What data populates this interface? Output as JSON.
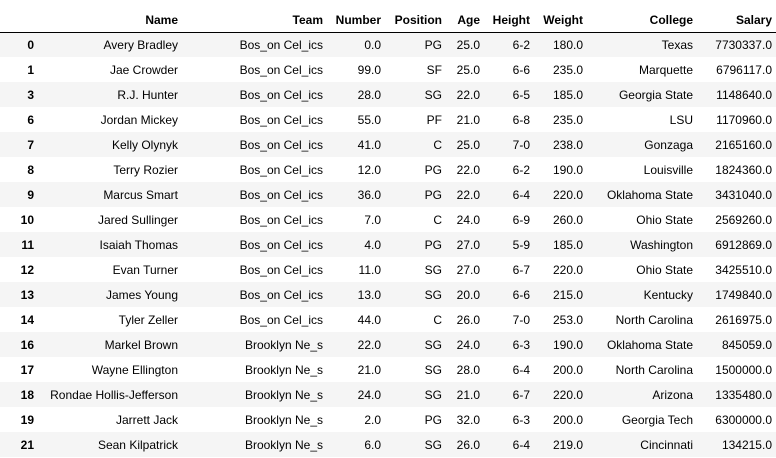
{
  "table": {
    "columns": [
      "",
      "Name",
      "Team",
      "Number",
      "Position",
      "Age",
      "Height",
      "Weight",
      "College",
      "Salary"
    ],
    "rows": [
      [
        "0",
        "Avery Bradley",
        "Bos_on Cel_ics",
        "0.0",
        "PG",
        "25.0",
        "6-2",
        "180.0",
        "Texas",
        "7730337.0"
      ],
      [
        "1",
        "Jae Crowder",
        "Bos_on Cel_ics",
        "99.0",
        "SF",
        "25.0",
        "6-6",
        "235.0",
        "Marquette",
        "6796117.0"
      ],
      [
        "3",
        "R.J. Hunter",
        "Bos_on Cel_ics",
        "28.0",
        "SG",
        "22.0",
        "6-5",
        "185.0",
        "Georgia State",
        "1148640.0"
      ],
      [
        "6",
        "Jordan Mickey",
        "Bos_on Cel_ics",
        "55.0",
        "PF",
        "21.0",
        "6-8",
        "235.0",
        "LSU",
        "1170960.0"
      ],
      [
        "7",
        "Kelly Olynyk",
        "Bos_on Cel_ics",
        "41.0",
        "C",
        "25.0",
        "7-0",
        "238.0",
        "Gonzaga",
        "2165160.0"
      ],
      [
        "8",
        "Terry Rozier",
        "Bos_on Cel_ics",
        "12.0",
        "PG",
        "22.0",
        "6-2",
        "190.0",
        "Louisville",
        "1824360.0"
      ],
      [
        "9",
        "Marcus Smart",
        "Bos_on Cel_ics",
        "36.0",
        "PG",
        "22.0",
        "6-4",
        "220.0",
        "Oklahoma State",
        "3431040.0"
      ],
      [
        "10",
        "Jared Sullinger",
        "Bos_on Cel_ics",
        "7.0",
        "C",
        "24.0",
        "6-9",
        "260.0",
        "Ohio State",
        "2569260.0"
      ],
      [
        "11",
        "Isaiah Thomas",
        "Bos_on Cel_ics",
        "4.0",
        "PG",
        "27.0",
        "5-9",
        "185.0",
        "Washington",
        "6912869.0"
      ],
      [
        "12",
        "Evan Turner",
        "Bos_on Cel_ics",
        "11.0",
        "SG",
        "27.0",
        "6-7",
        "220.0",
        "Ohio State",
        "3425510.0"
      ],
      [
        "13",
        "James Young",
        "Bos_on Cel_ics",
        "13.0",
        "SG",
        "20.0",
        "6-6",
        "215.0",
        "Kentucky",
        "1749840.0"
      ],
      [
        "14",
        "Tyler Zeller",
        "Bos_on Cel_ics",
        "44.0",
        "C",
        "26.0",
        "7-0",
        "253.0",
        "North Carolina",
        "2616975.0"
      ],
      [
        "16",
        "Markel Brown",
        "Brooklyn Ne_s",
        "22.0",
        "SG",
        "24.0",
        "6-3",
        "190.0",
        "Oklahoma State",
        "845059.0"
      ],
      [
        "17",
        "Wayne Ellington",
        "Brooklyn Ne_s",
        "21.0",
        "SG",
        "28.0",
        "6-4",
        "200.0",
        "North Carolina",
        "1500000.0"
      ],
      [
        "18",
        "Rondae Hollis-Jefferson",
        "Brooklyn Ne_s",
        "24.0",
        "SG",
        "21.0",
        "6-7",
        "220.0",
        "Arizona",
        "1335480.0"
      ],
      [
        "19",
        "Jarrett Jack",
        "Brooklyn Ne_s",
        "2.0",
        "PG",
        "32.0",
        "6-3",
        "200.0",
        "Georgia Tech",
        "6300000.0"
      ],
      [
        "21",
        "Sean Kilpatrick",
        "Brooklyn Ne_s",
        "6.0",
        "SG",
        "26.0",
        "6-4",
        "219.0",
        "Cincinnati",
        "134215.0"
      ]
    ]
  }
}
